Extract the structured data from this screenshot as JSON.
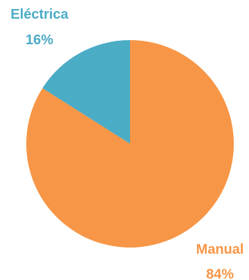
{
  "chart_data": {
    "type": "pie",
    "slices": [
      {
        "label": "Eléctrica",
        "percent_label": "16%",
        "value": 16,
        "color": "#4bacc6"
      },
      {
        "label": "Manual",
        "percent_label": "84%",
        "value": 84,
        "color": "#f79646"
      }
    ],
    "start_angle_deg": 0,
    "direction": "counterclockwise",
    "legend": "none",
    "data_labels": "outside"
  }
}
